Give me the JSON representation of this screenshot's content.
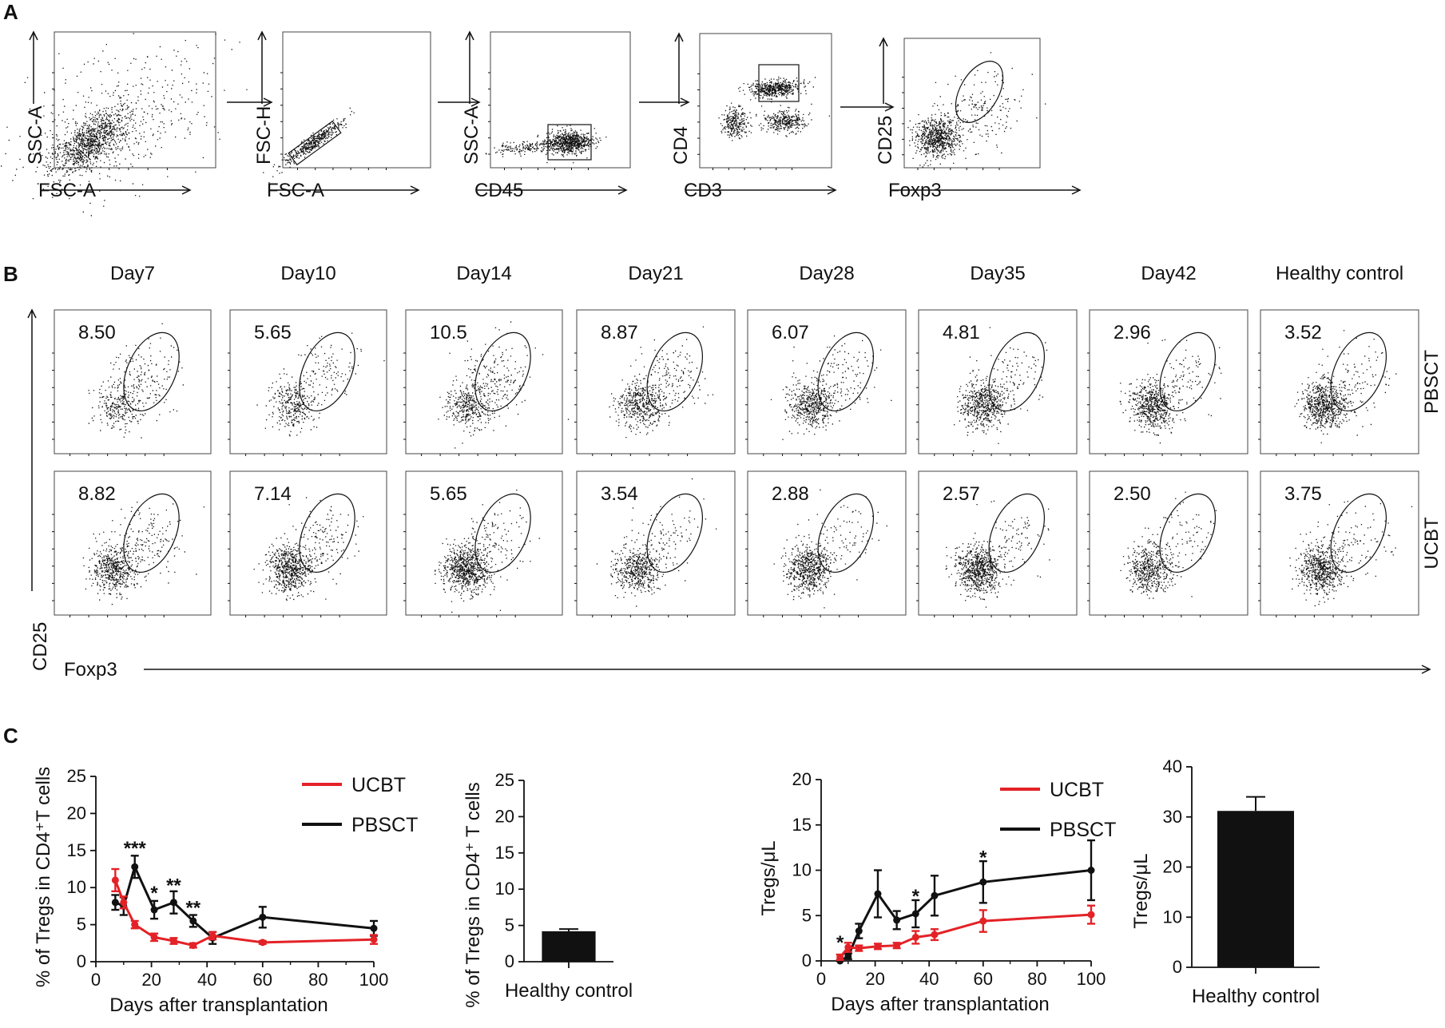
{
  "panel_labels": [
    "A",
    "B",
    "C"
  ],
  "gating": {
    "plots": [
      {
        "xlabel": "FSC-A",
        "ylabel": "SSC-A"
      },
      {
        "xlabel": "FSC-A",
        "ylabel": "FSC-H"
      },
      {
        "xlabel": "CD45",
        "ylabel": "SSC-A"
      },
      {
        "xlabel": "CD3",
        "ylabel": "CD4"
      },
      {
        "xlabel": "Foxp3",
        "ylabel": "CD25"
      }
    ]
  },
  "flow_grid": {
    "columns": [
      "Day7",
      "Day10",
      "Day14",
      "Day21",
      "Day28",
      "Day35",
      "Day42",
      "Healthy control"
    ],
    "rows": [
      {
        "label": "PBSCT",
        "values": [
          "8.50",
          "5.65",
          "10.5",
          "8.87",
          "6.07",
          "4.81",
          "2.96",
          "3.52"
        ]
      },
      {
        "label": "UCBT",
        "values": [
          "8.82",
          "7.14",
          "5.65",
          "3.54",
          "2.88",
          "2.57",
          "2.50",
          "3.75"
        ]
      }
    ],
    "xlabel": "Foxp3",
    "ylabel": "CD25"
  },
  "chart_data": [
    {
      "type": "line",
      "ylabel": "% of Tregs in CD4⁺T cells",
      "xlabel": "Days after transplantation",
      "xlim": [
        0,
        100
      ],
      "ylim": [
        0,
        25
      ],
      "xticks": [
        "0",
        "20",
        "40",
        "60",
        "80",
        "100"
      ],
      "yticks": [
        "0",
        "5",
        "10",
        "15",
        "20",
        "25"
      ],
      "series": [
        {
          "name": "UCBT",
          "color": "#e32227",
          "x": [
            7,
            10,
            14,
            21,
            28,
            35,
            42,
            60,
            100
          ],
          "y": [
            11.0,
            8.0,
            5.0,
            3.3,
            2.8,
            2.2,
            3.5,
            2.6,
            3.0
          ],
          "err": [
            1.5,
            0.8,
            0.5,
            0.5,
            0.4,
            0.3,
            0.5,
            0.2,
            0.6
          ]
        },
        {
          "name": "PBSCT",
          "color": "#111111",
          "x": [
            7,
            10,
            14,
            21,
            28,
            35,
            42,
            60,
            100
          ],
          "y": [
            8.0,
            7.5,
            12.8,
            7.0,
            8.0,
            5.5,
            3.2,
            6.0,
            4.5
          ],
          "err": [
            1.0,
            1.2,
            1.5,
            1.2,
            1.5,
            0.8,
            0.8,
            1.4,
            1.0
          ]
        }
      ],
      "annotations": [
        {
          "x": 14,
          "y": 15.5,
          "text": "***"
        },
        {
          "x": 21,
          "y": 9.5,
          "text": "*"
        },
        {
          "x": 28,
          "y": 10.5,
          "text": "**"
        },
        {
          "x": 35,
          "y": 7.5,
          "text": "**"
        }
      ]
    },
    {
      "type": "bar",
      "ylabel": "% of Tregs in CD4⁺ T cells",
      "categories": [
        "Healthy control"
      ],
      "values": [
        4.2
      ],
      "err": [
        0.3
      ],
      "ylim": [
        0,
        25
      ],
      "yticks": [
        "0",
        "5",
        "10",
        "15",
        "20",
        "25"
      ]
    },
    {
      "type": "line",
      "ylabel": "Tregs/μL",
      "xlabel": "Days after transplantation",
      "xlim": [
        0,
        100
      ],
      "ylim": [
        0,
        20
      ],
      "xticks": [
        "0",
        "20",
        "40",
        "60",
        "80",
        "100"
      ],
      "yticks": [
        "0",
        "5",
        "10",
        "15",
        "20"
      ],
      "series": [
        {
          "name": "UCBT",
          "color": "#e32227",
          "x": [
            7,
            10,
            14,
            21,
            28,
            35,
            42,
            60,
            100
          ],
          "y": [
            0.4,
            1.5,
            1.4,
            1.6,
            1.7,
            2.6,
            2.9,
            4.4,
            5.1
          ],
          "err": [
            0.3,
            0.5,
            0.3,
            0.3,
            0.3,
            0.7,
            0.6,
            1.2,
            1.0
          ]
        },
        {
          "name": "PBSCT",
          "color": "#111111",
          "x": [
            7,
            10,
            14,
            21,
            28,
            35,
            42,
            60,
            100
          ],
          "y": [
            0.0,
            0.5,
            3.3,
            7.4,
            4.5,
            5.2,
            7.2,
            8.7,
            10.0
          ],
          "err": [
            0.1,
            0.3,
            0.8,
            2.6,
            1.0,
            1.5,
            2.2,
            2.3,
            3.3
          ]
        }
      ],
      "annotations": [
        {
          "x": 7,
          "y": 2.2,
          "text": "*"
        },
        {
          "x": 35,
          "y": 7.3,
          "text": "*"
        },
        {
          "x": 60,
          "y": 11.6,
          "text": "*"
        }
      ]
    },
    {
      "type": "bar",
      "ylabel": "Tregs/μL",
      "categories": [
        "Healthy control"
      ],
      "values": [
        31.2
      ],
      "err": [
        2.8
      ],
      "ylim": [
        0,
        40
      ],
      "yticks": [
        "0",
        "10",
        "20",
        "30",
        "40"
      ]
    }
  ]
}
